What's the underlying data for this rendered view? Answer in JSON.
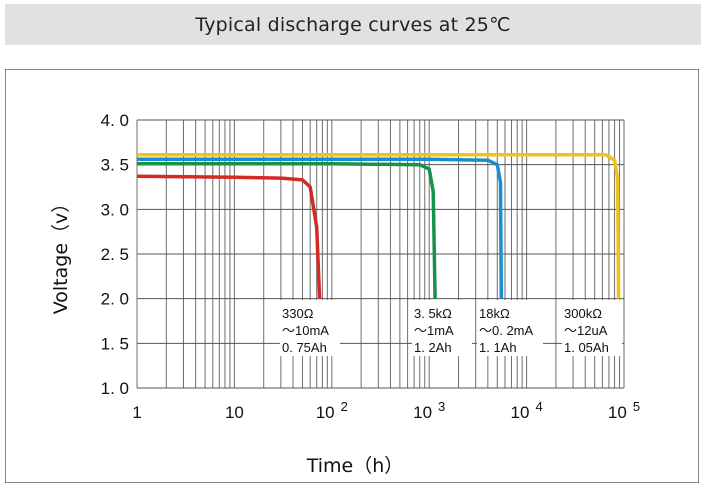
{
  "chart_data": {
    "type": "line",
    "title": "Typical discharge curves at 25℃",
    "xlabel": "Time（h）",
    "ylabel": "Voltage（v）",
    "xscale": "log",
    "xlim": [
      1,
      100000
    ],
    "ylim": [
      1.0,
      4.0
    ],
    "grid": true,
    "y_ticks": [
      {
        "value": 4.0,
        "label": "4. 0"
      },
      {
        "value": 3.5,
        "label": "3. 5"
      },
      {
        "value": 3.0,
        "label": "3. 0"
      },
      {
        "value": 2.5,
        "label": "2. 5"
      },
      {
        "value": 2.0,
        "label": "2. 0"
      },
      {
        "value": 1.5,
        "label": "1. 5"
      },
      {
        "value": 1.0,
        "label": "1. 0"
      }
    ],
    "x_ticks": [
      {
        "value": 1,
        "base": "1",
        "exp": ""
      },
      {
        "value": 10,
        "base": "10",
        "exp": ""
      },
      {
        "value": 100,
        "base": "10",
        "exp": "2"
      },
      {
        "value": 1000,
        "base": "10",
        "exp": "3"
      },
      {
        "value": 10000,
        "base": "10",
        "exp": "4"
      },
      {
        "value": 100000,
        "base": "10",
        "exp": "5"
      }
    ],
    "series": [
      {
        "name": "330Ω",
        "color": "#d42a26",
        "annotation": [
          "330Ω",
          "～10mA",
          "0. 75Ah"
        ],
        "points": [
          [
            1,
            3.37
          ],
          [
            10,
            3.36
          ],
          [
            30,
            3.35
          ],
          [
            50,
            3.33
          ],
          [
            60,
            3.25
          ],
          [
            70,
            2.8
          ],
          [
            75,
            2.0
          ]
        ]
      },
      {
        "name": "3.5kΩ",
        "color": "#16924a",
        "annotation": [
          "3. 5kΩ",
          "～1mA",
          "1. 2Ah"
        ],
        "points": [
          [
            1,
            3.51
          ],
          [
            100,
            3.51
          ],
          [
            800,
            3.5
          ],
          [
            1000,
            3.45
          ],
          [
            1100,
            3.2
          ],
          [
            1150,
            2.0
          ]
        ]
      },
      {
        "name": "18kΩ",
        "color": "#1a8fd0",
        "annotation": [
          "18kΩ",
          "～0. 2mA",
          "1. 1Ah"
        ],
        "points": [
          [
            1,
            3.56
          ],
          [
            1000,
            3.56
          ],
          [
            4000,
            3.55
          ],
          [
            5000,
            3.5
          ],
          [
            5400,
            3.3
          ],
          [
            5500,
            2.0
          ]
        ]
      },
      {
        "name": "300kΩ",
        "color": "#f2c21c",
        "annotation": [
          "300kΩ",
          "～12uA",
          "1. 05Ah"
        ],
        "points": [
          [
            1,
            3.61
          ],
          [
            10000,
            3.61
          ],
          [
            65000,
            3.61
          ],
          [
            80000,
            3.55
          ],
          [
            86000,
            3.35
          ],
          [
            88000,
            2.0
          ]
        ]
      }
    ]
  }
}
